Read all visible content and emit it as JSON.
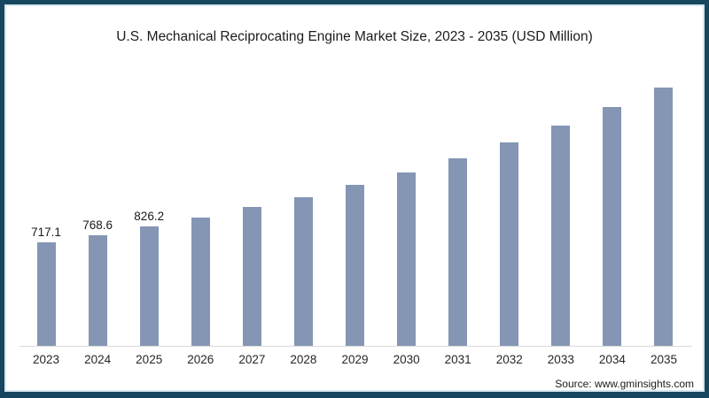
{
  "window": {
    "border_color": "#17465f",
    "inner_line_color": "#d6e7ef",
    "background": "#ffffff"
  },
  "title": "U.S. Mechanical Reciprocating Engine Market Size, 2023 - 2035 (USD Million)",
  "source": "Source: www.gminsights.com",
  "chart_data": {
    "type": "bar",
    "title": "U.S. Mechanical Reciprocating Engine Market Size, 2023 - 2035 (USD Million)",
    "categories": [
      "2023",
      "2024",
      "2025",
      "2026",
      "2027",
      "2028",
      "2029",
      "2030",
      "2031",
      "2032",
      "2033",
      "2034",
      "2035"
    ],
    "values": [
      717.1,
      768.6,
      826.2,
      888,
      961,
      1029,
      1115,
      1200,
      1298,
      1408,
      1525,
      1653,
      1788
    ],
    "data_labels": [
      "717.1",
      "768.6",
      "826.2",
      "",
      "",
      "",
      "",
      "",
      "",
      "",
      "",
      "",
      ""
    ],
    "xlabel": "",
    "ylabel": "",
    "ylim": [
      0,
      1900
    ],
    "grid": false,
    "legend": false,
    "bar_color": "#8496b4",
    "axis_line_color": "#d9d9d9",
    "label_color": "#1a1a1a",
    "tick_label_color": "#262626"
  }
}
